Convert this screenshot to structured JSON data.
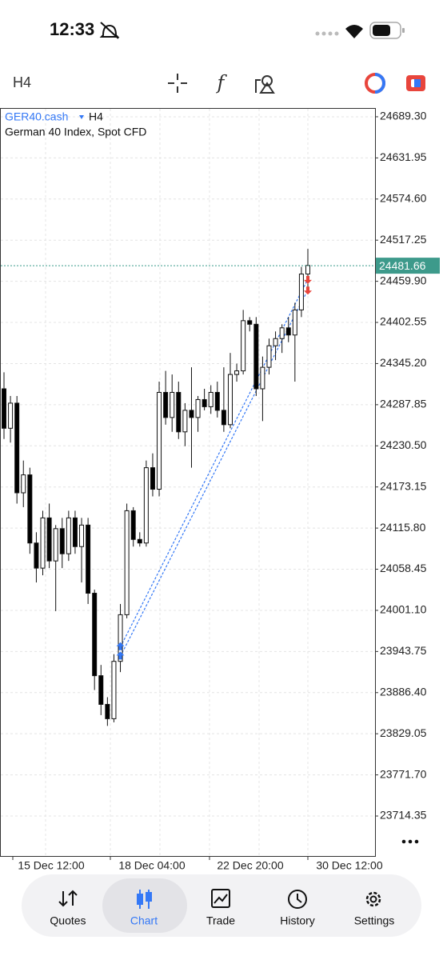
{
  "status_bar": {
    "time": "12:33"
  },
  "toolbar": {
    "timeframe": "H4"
  },
  "chart_data": {
    "type": "candlestick",
    "symbol": "GER40.cash",
    "timeframe": "H4",
    "subtitle": "German 40 Index, Spot CFD",
    "up_color": "#ffffff",
    "down_color": "#000000",
    "open": [
      24310,
      24255,
      24290,
      24165,
      24190,
      24095,
      24060,
      24130,
      24070,
      24115,
      24080,
      24130,
      24090,
      24120,
      24025,
      23910,
      23870,
      23850,
      23930,
      23995,
      24140,
      24100,
      24095,
      24200,
      24170,
      24305,
      24270,
      24305,
      24250,
      24280,
      24270,
      24295,
      24285,
      24305,
      24280,
      24260,
      24330,
      24335,
      24405,
      24400,
      24310,
      24340,
      24370,
      24380,
      24395,
      24385,
      24420,
      24470
    ],
    "high": [
      24333,
      24300,
      24300,
      24210,
      24200,
      24110,
      24140,
      24150,
      24120,
      24130,
      24140,
      24140,
      24130,
      24130,
      24030,
      23925,
      23880,
      23940,
      24010,
      24150,
      24145,
      24110,
      24210,
      24220,
      24320,
      24335,
      24330,
      24320,
      24290,
      24340,
      24300,
      24310,
      24315,
      24320,
      24340,
      24360,
      24345,
      24420,
      24410,
      24410,
      24355,
      24380,
      24390,
      24400,
      24410,
      24430,
      24480,
      24505
    ],
    "low": [
      24240,
      24235,
      24150,
      24145,
      24080,
      24040,
      24050,
      24060,
      24000,
      24060,
      24070,
      24080,
      24040,
      24010,
      23890,
      23855,
      23840,
      23845,
      23915,
      23990,
      24090,
      24090,
      24090,
      24160,
      24160,
      24260,
      24250,
      24240,
      24230,
      24200,
      24250,
      24280,
      24275,
      24270,
      24250,
      24255,
      24320,
      24330,
      24390,
      24300,
      24265,
      24330,
      24350,
      24360,
      24375,
      24320,
      24410,
      24450
    ],
    "close": [
      24255,
      24290,
      24165,
      24190,
      24095,
      24060,
      24130,
      24070,
      24115,
      24080,
      24130,
      24090,
      24120,
      24025,
      23910,
      23870,
      23850,
      23930,
      23995,
      24140,
      24100,
      24095,
      24200,
      24170,
      24305,
      24270,
      24305,
      24250,
      24280,
      24270,
      24295,
      24285,
      24305,
      24280,
      24260,
      24330,
      24335,
      24405,
      24400,
      24310,
      24340,
      24370,
      24380,
      24395,
      24385,
      24420,
      24470,
      24482
    ],
    "trades": [
      {
        "entry_index": 18,
        "entry": 23950,
        "exit_index": 47,
        "exit": 24463
      },
      {
        "entry_index": 18,
        "entry": 23937,
        "exit_index": 47,
        "exit": 24448
      }
    ],
    "current_price": 24481.66,
    "ylim": [
      23658.6,
      24700.4
    ],
    "yticks": [
      {
        "value": 24689.3,
        "label": "24689.30"
      },
      24631.95,
      {
        "value": 24574.6,
        "label": "24574.60"
      },
      24517.25,
      {
        "value": 24459.9,
        "label": "24459.90"
      },
      24402.55,
      {
        "value": 24345.2,
        "label": "24345.20"
      },
      24287.85,
      {
        "value": 24230.5,
        "label": "24230.50"
      },
      24173.15,
      {
        "value": 24115.8,
        "label": "24115.80"
      },
      24058.45,
      {
        "value": 24001.1,
        "label": "24001.10"
      },
      23943.75,
      {
        "value": 23886.4,
        "label": "23886.40"
      },
      23829.05,
      {
        "value": 23771.7,
        "label": "23771.70"
      },
      23714.35
    ],
    "x_labels": [
      "15 Dec 12:00",
      "18 Dec 04:00",
      "22 Dec 20:00",
      "30 Dec 12:00"
    ],
    "grid": true
  },
  "nav": {
    "items": [
      "Quotes",
      "Chart",
      "Trade",
      "History",
      "Settings"
    ],
    "active": 1
  }
}
